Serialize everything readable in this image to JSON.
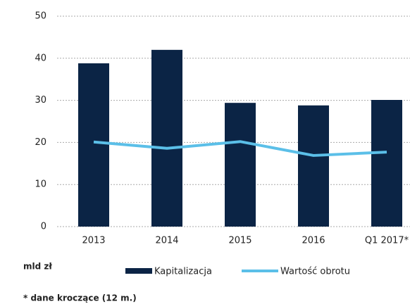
{
  "chart_data": {
    "type": "bar",
    "categories": [
      "2013",
      "2014",
      "2015",
      "2016",
      "Q1 2017*"
    ],
    "series": [
      {
        "name": "Kapitalizacja",
        "type": "bar",
        "color": "#0b2445",
        "values": [
          38.8,
          42.0,
          29.4,
          28.8,
          30.1
        ]
      },
      {
        "name": "Wartość obrotu",
        "type": "line",
        "color": "#5bbfe8",
        "values": [
          20.1,
          18.6,
          20.2,
          16.9,
          17.7
        ]
      }
    ],
    "ylim": [
      0,
      50
    ],
    "yticks": [
      0,
      10,
      20,
      30,
      40,
      50
    ],
    "grid": true,
    "unit_label": "mld zł",
    "footnote": "* dane kroczące (12 m.)"
  }
}
